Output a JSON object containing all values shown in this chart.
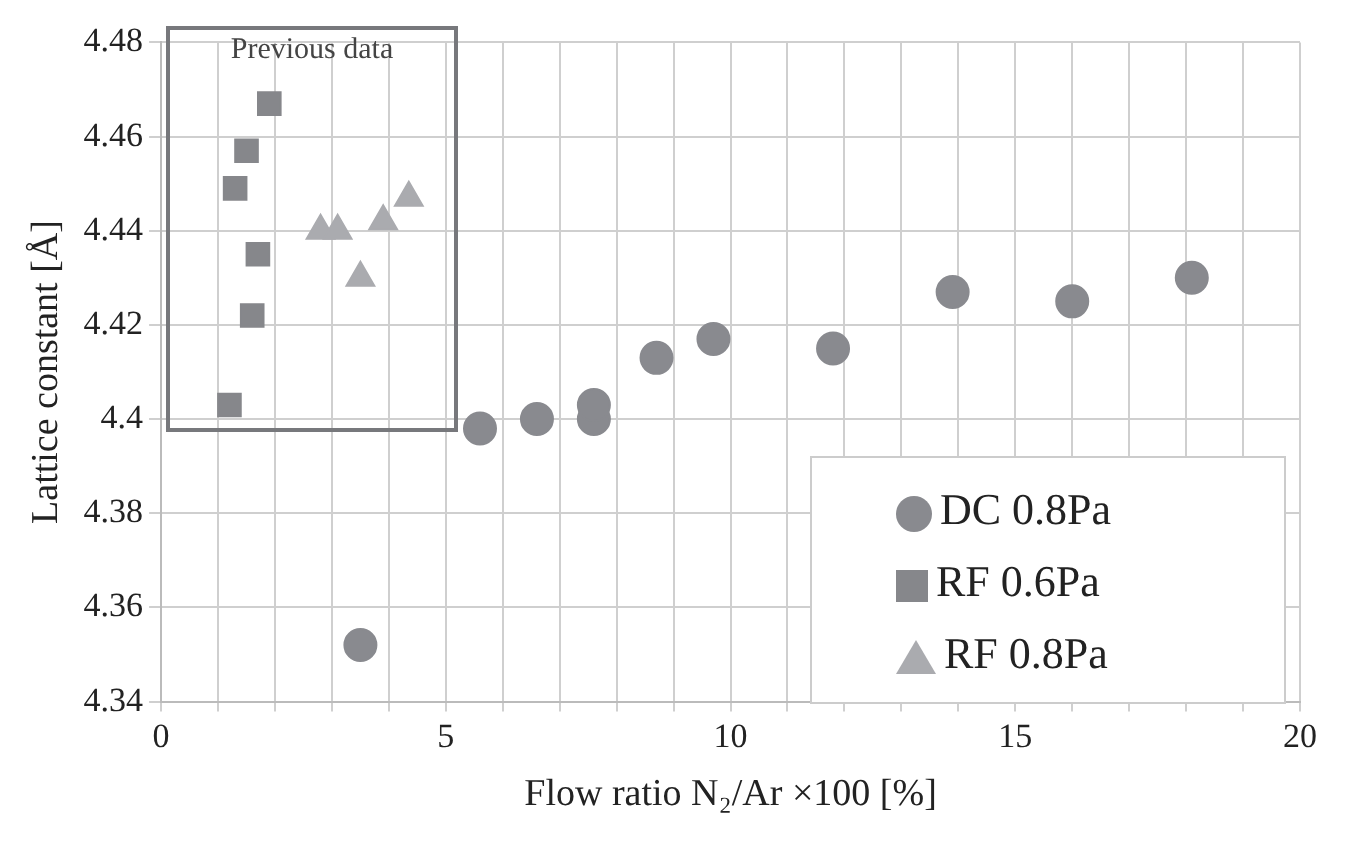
{
  "chart_data": {
    "type": "scatter",
    "xlabel": "Flow ratio N₂/Ar ×100 [%]",
    "ylabel": "Lattice constant [Å]",
    "annotations": [
      "Previous data"
    ],
    "series": [
      {
        "name": "DC 0.8Pa",
        "color": "#898a8f",
        "marker": "circle",
        "x": [
          3.5,
          5.6,
          6.6,
          7.6,
          7.6,
          8.7,
          9.7,
          11.8,
          13.9,
          16.0,
          18.1
        ],
        "values": [
          4.352,
          4.398,
          4.4,
          4.4,
          4.403,
          4.413,
          4.417,
          4.415,
          4.427,
          4.425,
          4.43
        ]
      },
      {
        "name": "RF 0.6Pa",
        "color": "#86878b",
        "marker": "square",
        "x": [
          1.2,
          1.6,
          1.7,
          1.3,
          1.5,
          1.9
        ],
        "values": [
          4.403,
          4.422,
          4.435,
          4.449,
          4.457,
          4.467
        ]
      },
      {
        "name": "RF 0.8Pa",
        "color": "#aaabaf",
        "marker": "triangle",
        "x": [
          2.8,
          3.1,
          3.5,
          3.9,
          4.35
        ],
        "values": [
          4.44,
          4.44,
          4.43,
          4.442,
          4.447
        ]
      }
    ],
    "xlim": [
      0,
      20
    ],
    "xticks": [
      0,
      {
        "value": 1,
        "label": null
      },
      {
        "value": 2,
        "label": null
      },
      {
        "value": 3,
        "label": null
      },
      {
        "value": 4,
        "label": null
      },
      5,
      {
        "value": 6,
        "label": null
      },
      {
        "value": 7,
        "label": null
      },
      {
        "value": 8,
        "label": null
      },
      {
        "value": 9,
        "label": null
      },
      10,
      {
        "value": 11,
        "label": null
      },
      {
        "value": 12,
        "label": null
      },
      {
        "value": 13,
        "label": null
      },
      {
        "value": 14,
        "label": null
      },
      15,
      {
        "value": 16,
        "label": null
      },
      {
        "value": 17,
        "label": null
      },
      {
        "value": 18,
        "label": null
      },
      {
        "value": 19,
        "label": null
      },
      20
    ],
    "ylim": [
      4.34,
      4.48
    ],
    "yticks": [
      4.34,
      4.36,
      4.38,
      4.4,
      4.42,
      4.44,
      4.46,
      4.48
    ],
    "grid": true,
    "legend": "bottom right"
  }
}
